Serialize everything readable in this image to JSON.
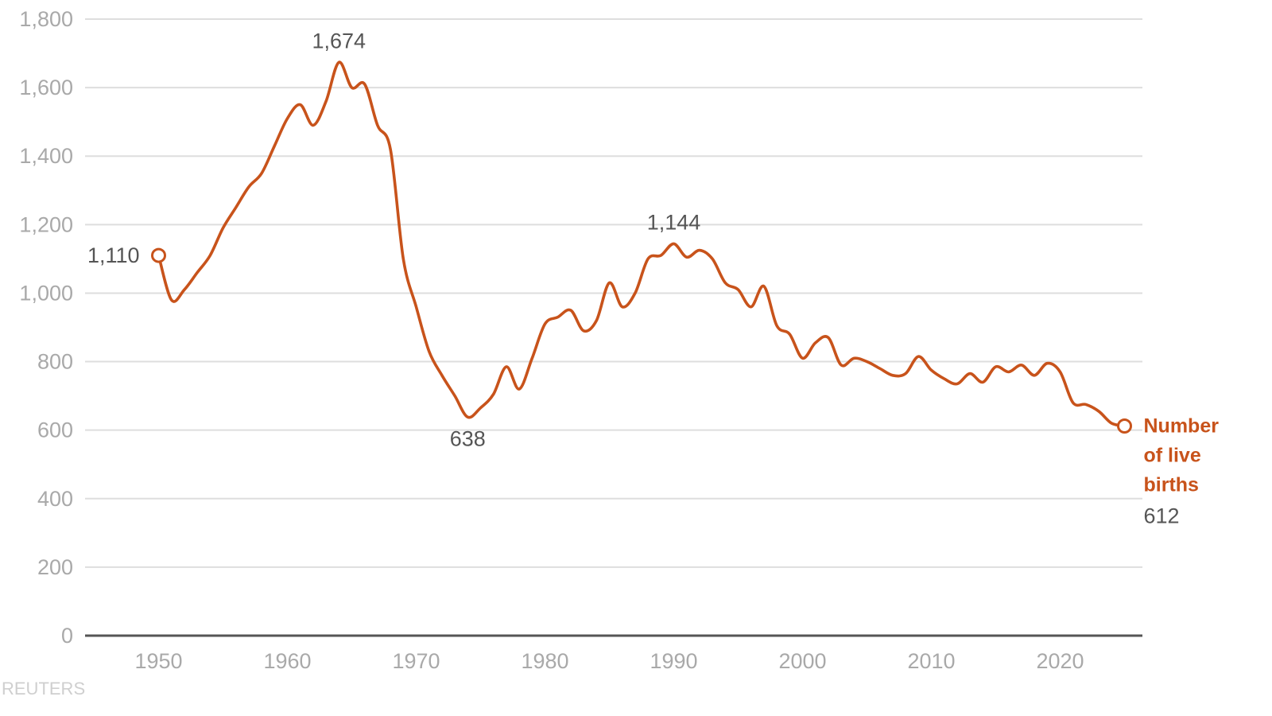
{
  "chart_data": {
    "type": "line",
    "title": "",
    "xlabel": "",
    "ylabel": "",
    "xlim": [
      1945,
      2026
    ],
    "ylim": [
      0,
      1800
    ],
    "y_ticks": [
      0,
      200,
      400,
      600,
      800,
      1000,
      1200,
      1400,
      1600,
      1800
    ],
    "y_tick_labels": [
      "0",
      "200",
      "400",
      "600",
      "800",
      "1,000",
      "1,200",
      "1,400",
      "1,600",
      "1,800"
    ],
    "x_ticks": [
      1950,
      1960,
      1970,
      1980,
      1990,
      2000,
      2010,
      2020
    ],
    "x_tick_labels": [
      "1950",
      "1960",
      "1970",
      "1980",
      "1990",
      "2000",
      "2010",
      "2020"
    ],
    "grid": true,
    "line_color": "#c8531b",
    "series": [
      {
        "name": "Number of live births",
        "x": [
          1950,
          1951,
          1952,
          1953,
          1954,
          1955,
          1956,
          1957,
          1958,
          1959,
          1960,
          1961,
          1962,
          1963,
          1964,
          1965,
          1966,
          1967,
          1968,
          1969,
          1970,
          1971,
          1972,
          1973,
          1974,
          1975,
          1976,
          1977,
          1978,
          1979,
          1980,
          1981,
          1982,
          1983,
          1984,
          1985,
          1986,
          1987,
          1988,
          1989,
          1990,
          1991,
          1992,
          1993,
          1994,
          1995,
          1996,
          1997,
          1998,
          1999,
          2000,
          2001,
          2002,
          2003,
          2004,
          2005,
          2006,
          2007,
          2008,
          2009,
          2010,
          2011,
          2012,
          2013,
          2014,
          2015,
          2016,
          2017,
          2018,
          2019,
          2020,
          2021,
          2022,
          2023,
          2024,
          2025
        ],
        "values": [
          1110,
          980,
          1010,
          1060,
          1110,
          1190,
          1250,
          1310,
          1350,
          1430,
          1510,
          1550,
          1490,
          1560,
          1674,
          1600,
          1610,
          1490,
          1420,
          1100,
          960,
          830,
          760,
          700,
          638,
          665,
          705,
          785,
          720,
          810,
          910,
          930,
          950,
          890,
          920,
          1030,
          960,
          1000,
          1100,
          1110,
          1144,
          1105,
          1125,
          1100,
          1030,
          1010,
          960,
          1020,
          905,
          880,
          810,
          855,
          870,
          790,
          810,
          800,
          780,
          760,
          765,
          815,
          775,
          750,
          735,
          765,
          740,
          785,
          770,
          790,
          760,
          795,
          770,
          680,
          675,
          655,
          620,
          612
        ]
      }
    ],
    "annotations": [
      {
        "x": 1950,
        "y": 1110,
        "text": "1,110"
      },
      {
        "x": 1964,
        "y": 1674,
        "text": "1,674"
      },
      {
        "x": 1974,
        "y": 638,
        "text": "638"
      },
      {
        "x": 1990,
        "y": 1144,
        "text": "1,144"
      },
      {
        "x": 2025,
        "y": 612,
        "text": "612"
      }
    ],
    "series_label_lines": [
      "Number",
      "of live",
      "births"
    ],
    "endpoint_markers": [
      "hollow-circle-start",
      "hollow-circle-end"
    ]
  },
  "credit": "REUTERS"
}
